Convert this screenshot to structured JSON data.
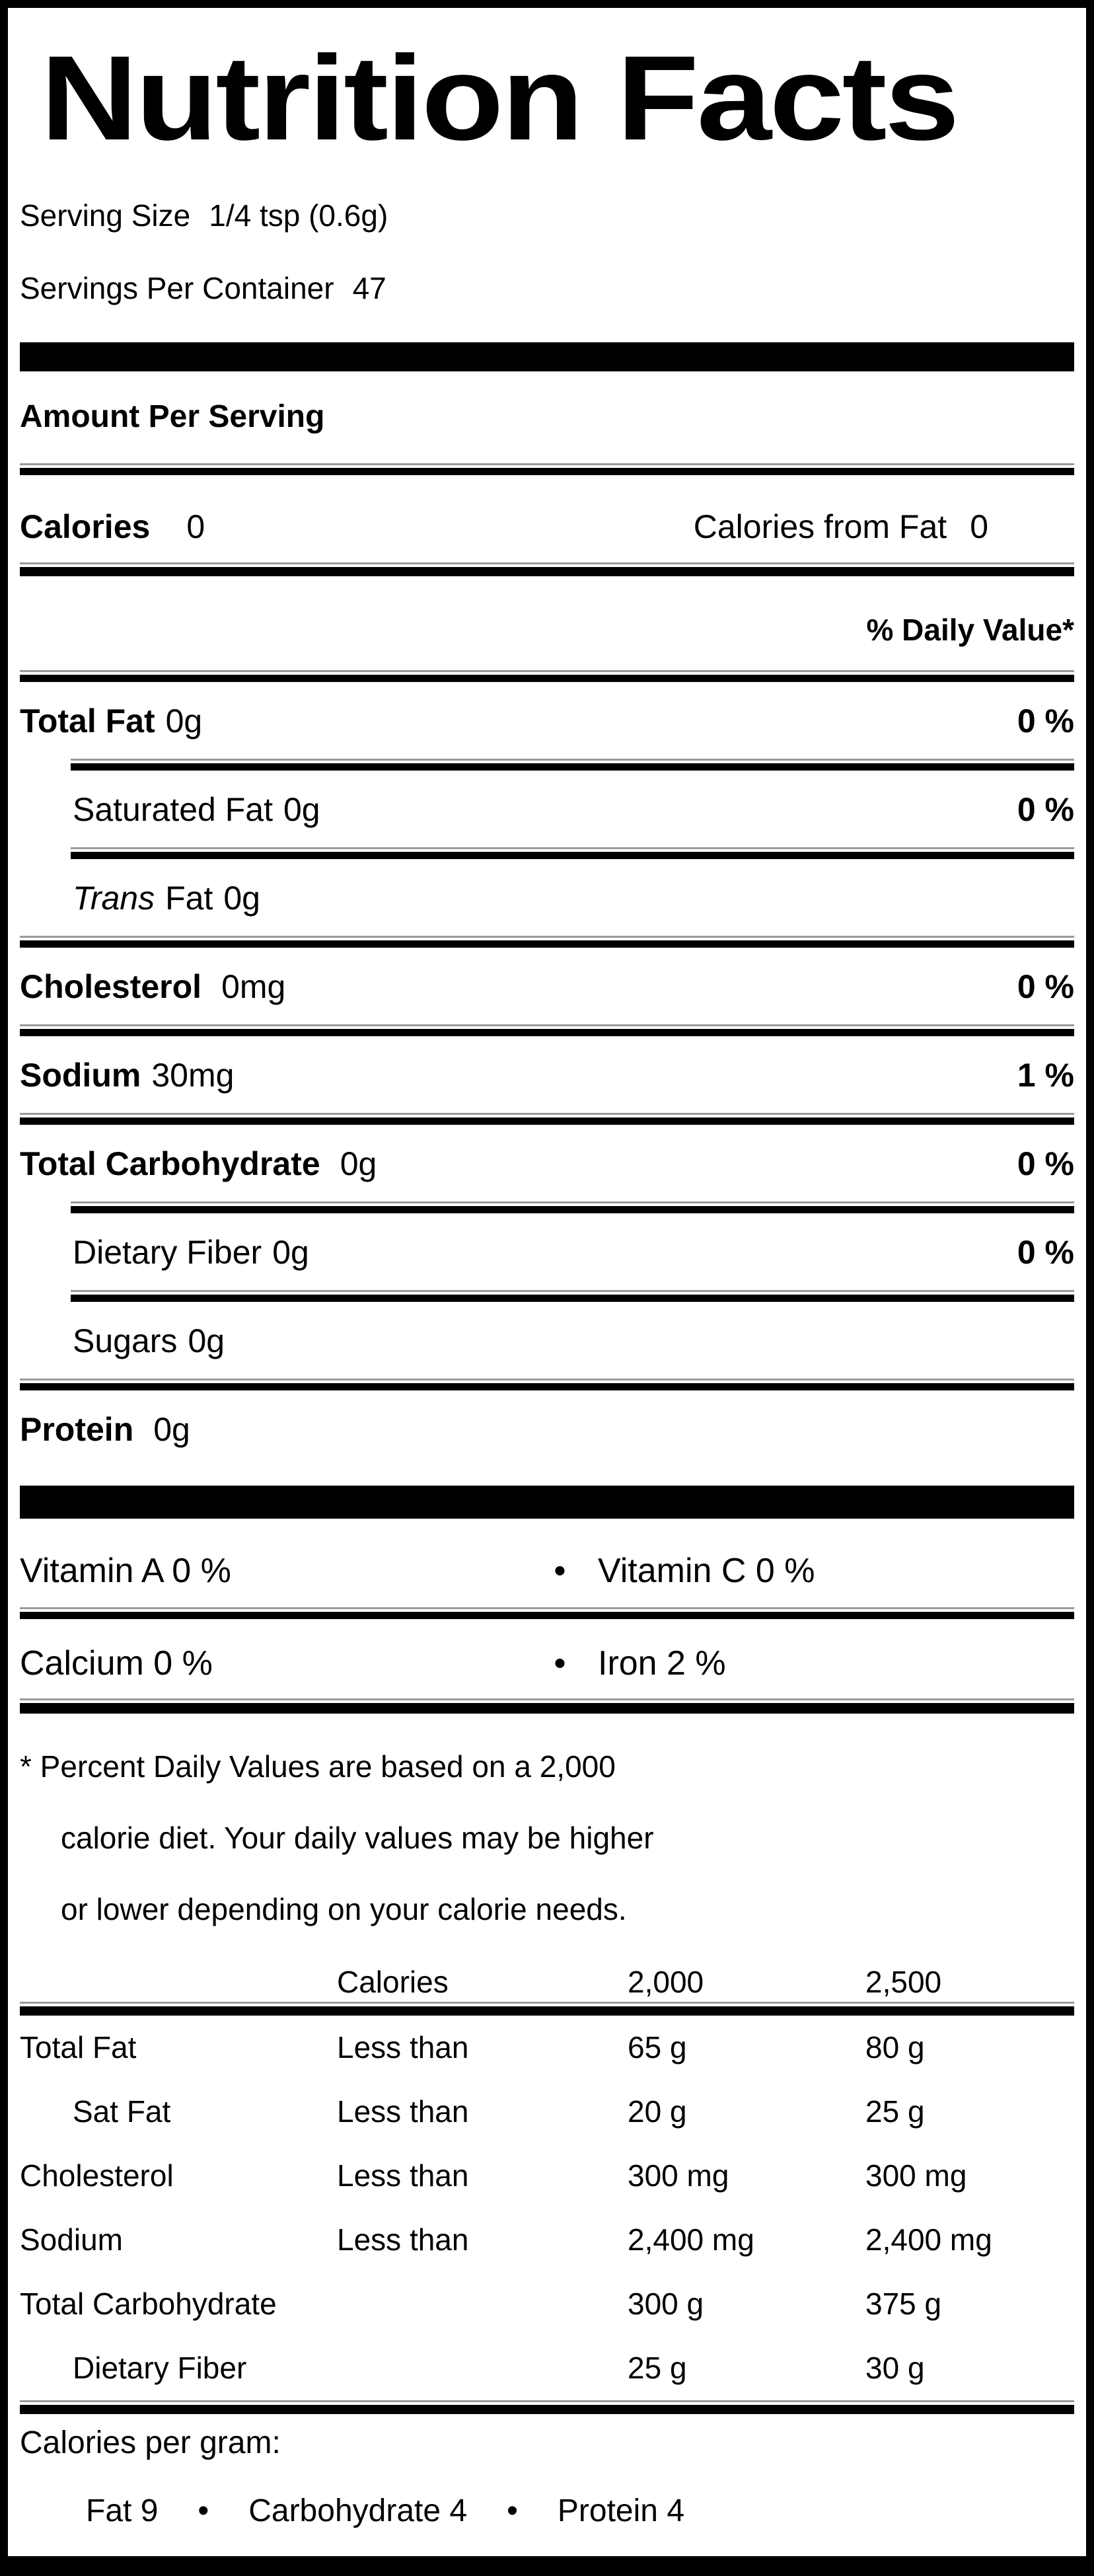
{
  "title": "Nutrition Facts",
  "serving": {
    "size_label": "Serving Size",
    "size_value": "1/4 tsp  (0.6g)",
    "per_container_label": "Servings Per Container",
    "per_container_value": "47"
  },
  "amount_per_serving": "Amount Per Serving",
  "calories": {
    "label": "Calories",
    "value": "0",
    "from_fat_label": "Calories from Fat",
    "from_fat_value": "0"
  },
  "daily_value_header": "% Daily Value*",
  "nutrients": [
    {
      "label": "Total Fat",
      "amount": "0g",
      "dv": "0 %"
    },
    {
      "label": "Saturated Fat",
      "amount": "0g",
      "dv": "0 %"
    },
    {
      "label_italic": "Trans",
      "label_rest": "Fat",
      "amount": "0g"
    },
    {
      "label": "Cholesterol",
      "amount": "0mg",
      "dv": "0 %"
    },
    {
      "label": "Sodium",
      "amount": "30mg",
      "dv": "1 %"
    },
    {
      "label": "Total Carbohydrate",
      "amount": "0g",
      "dv": "0 %"
    },
    {
      "label": "Dietary Fiber",
      "amount": "0g",
      "dv": "0 %"
    },
    {
      "label": "Sugars",
      "amount": "0g"
    },
    {
      "label": "Protein",
      "amount": "0g"
    }
  ],
  "vitamins": [
    {
      "left": "Vitamin A 0 %",
      "bullet": "•",
      "right": "Vitamin C 0 %"
    },
    {
      "left": "Calcium 0 %",
      "bullet": "•",
      "right": "Iron 2 %"
    }
  ],
  "footnote_lines": [
    "* Percent Daily Values are based on a 2,000",
    "calorie diet. Your daily values may be higher",
    "or lower depending on your calorie needs."
  ],
  "dv_table": {
    "header": {
      "calories": "Calories",
      "v2000": "2,000",
      "v2500": "2,500"
    },
    "rows": [
      {
        "label": "Total Fat",
        "qualifier": "Less than",
        "v2000": "65 g",
        "v2500": "80 g"
      },
      {
        "label": "Sat Fat",
        "qualifier": "Less than",
        "v2000": "20 g",
        "v2500": "25 g"
      },
      {
        "label": "Cholesterol",
        "qualifier": "Less than",
        "v2000": "300 mg",
        "v2500": "300 mg"
      },
      {
        "label": "Sodium",
        "qualifier": "Less than",
        "v2000": "2,400 mg",
        "v2500": "2,400 mg"
      },
      {
        "label": "Total Carbohydrate",
        "qualifier": "",
        "v2000": "300 g",
        "v2500": "375 g"
      },
      {
        "label": "Dietary Fiber",
        "qualifier": "",
        "v2000": "25 g",
        "v2500": "30 g"
      }
    ]
  },
  "calories_per_gram": {
    "label": "Calories per gram:",
    "bullet": "•",
    "items": [
      "Fat 9",
      "Carbohydrate 4",
      "Protein 4"
    ]
  }
}
